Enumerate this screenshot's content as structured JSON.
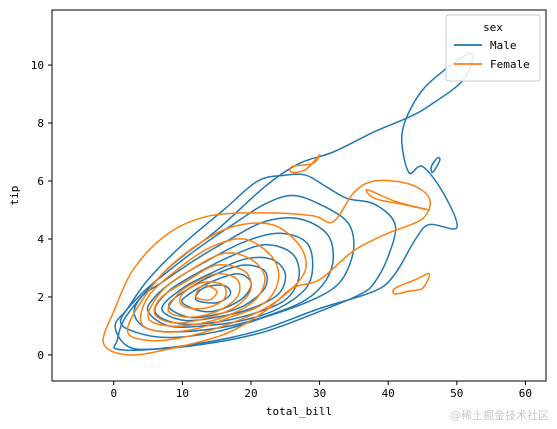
{
  "chart_data": {
    "type": "kde-contour",
    "xlabel": "total_bill",
    "ylabel": "tip",
    "xlim": [
      -9,
      63
    ],
    "ylim": [
      -0.9,
      11.9
    ],
    "xticks": [
      0,
      10,
      20,
      30,
      40,
      50,
      60
    ],
    "yticks": [
      0,
      2,
      4,
      6,
      8,
      10
    ],
    "legend": {
      "title": "sex",
      "placement": "top-right",
      "entries": [
        "Male",
        "Female"
      ]
    },
    "series": [
      {
        "name": "Male",
        "color": "#1f77b4",
        "contours": [
          {
            "level": 1,
            "points": [
              [
                0.5,
                0.2
              ],
              [
                6,
                0.2
              ],
              [
                15,
                0.5
              ],
              [
                22,
                0.9
              ],
              [
                30,
                1.6
              ],
              [
                38,
                2.2
              ],
              [
                41,
                2.8
              ],
              [
                44,
                4.0
              ],
              [
                46,
                4.5
              ],
              [
                50,
                4.4
              ],
              [
                48,
                5.6
              ],
              [
                45,
                6.5
              ],
              [
                43,
                6.3
              ],
              [
                42,
                7.6
              ],
              [
                44,
                8.8
              ],
              [
                47,
                9.6
              ],
              [
                52,
                10.4
              ],
              [
                51,
                9.5
              ],
              [
                46,
                8.6
              ],
              [
                43,
                8.2
              ],
              [
                38,
                7.7
              ],
              [
                32,
                7.0
              ],
              [
                27,
                6.6
              ],
              [
                22,
                5.8
              ],
              [
                15,
                4.3
              ],
              [
                8,
                3.0
              ],
              [
                2,
                1.4
              ],
              [
                0.5,
                0.5
              ]
            ]
          },
          {
            "level": 2,
            "points": [
              [
                0.2,
                1.0
              ],
              [
                2,
                0.3
              ],
              [
                6,
                0.2
              ],
              [
                14,
                0.4
              ],
              [
                22,
                0.8
              ],
              [
                30,
                1.5
              ],
              [
                36,
                2.1
              ],
              [
                38,
                2.5
              ],
              [
                40,
                3.4
              ],
              [
                41,
                4.5
              ],
              [
                38,
                5.2
              ],
              [
                34,
                5.4
              ],
              [
                31,
                5.8
              ],
              [
                28,
                6.2
              ],
              [
                25,
                6.2
              ],
              [
                21,
                6.0
              ],
              [
                16,
                5.0
              ],
              [
                10,
                3.8
              ],
              [
                5,
                2.6
              ],
              [
                2,
                1.6
              ]
            ]
          },
          {
            "level": 3,
            "points": [
              [
                1,
                1.2
              ],
              [
                3,
                0.8
              ],
              [
                8,
                0.6
              ],
              [
                15,
                0.8
              ],
              [
                22,
                1.3
              ],
              [
                28,
                1.8
              ],
              [
                32,
                2.3
              ],
              [
                34,
                2.9
              ],
              [
                35,
                3.8
              ],
              [
                34,
                4.6
              ],
              [
                30,
                5.2
              ],
              [
                26,
                5.5
              ],
              [
                22,
                5.2
              ],
              [
                18,
                4.6
              ],
              [
                13,
                3.8
              ],
              [
                8,
                2.9
              ],
              [
                4,
                2.1
              ]
            ]
          },
          {
            "level": 4,
            "points": [
              [
                3,
                1.4
              ],
              [
                5,
                0.9
              ],
              [
                10,
                0.8
              ],
              [
                17,
                1.0
              ],
              [
                23,
                1.4
              ],
              [
                28,
                1.9
              ],
              [
                31,
                2.6
              ],
              [
                32,
                3.4
              ],
              [
                31,
                4.2
              ],
              [
                27,
                4.7
              ],
              [
                22,
                4.6
              ],
              [
                17,
                4.0
              ],
              [
                12,
                3.3
              ],
              [
                7,
                2.5
              ],
              [
                4,
                2.0
              ]
            ]
          },
          {
            "level": 5,
            "points": [
              [
                5,
                1.5
              ],
              [
                8,
                1.0
              ],
              [
                13,
                1.0
              ],
              [
                19,
                1.2
              ],
              [
                24,
                1.6
              ],
              [
                28,
                2.3
              ],
              [
                29,
                3.1
              ],
              [
                28,
                3.9
              ],
              [
                24,
                4.2
              ],
              [
                19,
                3.9
              ],
              [
                14,
                3.3
              ],
              [
                9,
                2.6
              ],
              [
                6,
                2.0
              ]
            ]
          },
          {
            "level": 6,
            "points": [
              [
                6,
                1.5
              ],
              [
                9,
                1.1
              ],
              [
                14,
                1.1
              ],
              [
                20,
                1.4
              ],
              [
                25,
                1.9
              ],
              [
                27,
                2.7
              ],
              [
                26,
                3.5
              ],
              [
                22,
                3.8
              ],
              [
                17,
                3.4
              ],
              [
                12,
                2.8
              ],
              [
                8,
                2.2
              ]
            ]
          },
          {
            "level": 7,
            "points": [
              [
                7,
                1.6
              ],
              [
                10,
                1.2
              ],
              [
                15,
                1.3
              ],
              [
                20,
                1.6
              ],
              [
                24,
                2.1
              ],
              [
                25,
                2.8
              ],
              [
                23,
                3.3
              ],
              [
                19,
                3.3
              ],
              [
                14,
                2.8
              ],
              [
                10,
                2.3
              ]
            ]
          },
          {
            "level": 8,
            "points": [
              [
                8,
                1.7
              ],
              [
                11,
                1.3
              ],
              [
                15,
                1.4
              ],
              [
                19,
                1.7
              ],
              [
                22,
                2.3
              ],
              [
                22,
                2.9
              ],
              [
                19,
                3.1
              ],
              [
                15,
                2.8
              ],
              [
                11,
                2.3
              ]
            ]
          },
          {
            "level": 9,
            "points": [
              [
                10,
                1.8
              ],
              [
                13,
                1.5
              ],
              [
                16,
                1.6
              ],
              [
                19,
                2.0
              ],
              [
                20,
                2.5
              ],
              [
                18,
                2.8
              ],
              [
                14,
                2.5
              ],
              [
                11,
                2.1
              ]
            ]
          },
          {
            "level": 10,
            "points": [
              [
                12,
                1.9
              ],
              [
                15,
                1.8
              ],
              [
                17,
                2.1
              ],
              [
                16,
                2.4
              ],
              [
                13,
                2.3
              ]
            ]
          },
          {
            "level": 11,
            "points": [
              [
                46.5,
                6.3
              ],
              [
                47.5,
                6.7
              ],
              [
                47.2,
                6.8
              ],
              [
                46.3,
                6.5
              ]
            ]
          }
        ]
      },
      {
        "name": "Female",
        "color": "#ff7f0e",
        "contours": [
          {
            "level": 1,
            "points": [
              [
                -1.5,
                0.4
              ],
              [
                2,
                0.0
              ],
              [
                8,
                0.2
              ],
              [
                16,
                0.7
              ],
              [
                22,
                1.5
              ],
              [
                26,
                2.3
              ],
              [
                30,
                2.6
              ],
              [
                35,
                3.6
              ],
              [
                40,
                4.2
              ],
              [
                45,
                4.7
              ],
              [
                46,
                5.4
              ],
              [
                43,
                5.9
              ],
              [
                38,
                6.0
              ],
              [
                35,
                5.6
              ],
              [
                32,
                4.6
              ],
              [
                29,
                4.8
              ],
              [
                22,
                4.9
              ],
              [
                14,
                4.8
              ],
              [
                8,
                4.2
              ],
              [
                3,
                3.0
              ],
              [
                0,
                1.5
              ]
            ]
          },
          {
            "level": 2,
            "points": [
              [
                2,
                0.9
              ],
              [
                5,
                0.5
              ],
              [
                10,
                0.6
              ],
              [
                16,
                1.0
              ],
              [
                22,
                1.6
              ],
              [
                26,
                2.3
              ],
              [
                28,
                3.0
              ],
              [
                27,
                3.8
              ],
              [
                23,
                4.5
              ],
              [
                17,
                4.4
              ],
              [
                11,
                3.6
              ],
              [
                6,
                2.5
              ]
            ]
          },
          {
            "level": 3,
            "points": [
              [
                4,
                1.1
              ],
              [
                7,
                0.8
              ],
              [
                12,
                0.9
              ],
              [
                17,
                1.3
              ],
              [
                22,
                1.8
              ],
              [
                24,
                2.6
              ],
              [
                23,
                3.4
              ],
              [
                19,
                4.0
              ],
              [
                14,
                3.7
              ],
              [
                9,
                2.9
              ],
              [
                5,
                2.0
              ]
            ]
          },
          {
            "level": 4,
            "points": [
              [
                5,
                1.3
              ],
              [
                8,
                1.0
              ],
              [
                13,
                1.1
              ],
              [
                18,
                1.5
              ],
              [
                21,
                2.0
              ],
              [
                22,
                2.7
              ],
              [
                20,
                3.3
              ],
              [
                16,
                3.5
              ],
              [
                11,
                2.9
              ],
              [
                7,
                2.2
              ]
            ]
          },
          {
            "level": 5,
            "points": [
              [
                6,
                1.4
              ],
              [
                9,
                1.1
              ],
              [
                14,
                1.3
              ],
              [
                18,
                1.7
              ],
              [
                20,
                2.3
              ],
              [
                19,
                2.9
              ],
              [
                15,
                3.1
              ],
              [
                11,
                2.6
              ],
              [
                7,
                2.0
              ]
            ]
          },
          {
            "level": 6,
            "points": [
              [
                8,
                1.5
              ],
              [
                11,
                1.3
              ],
              [
                15,
                1.5
              ],
              [
                18,
                2.0
              ],
              [
                18,
                2.6
              ],
              [
                15,
                2.8
              ],
              [
                11,
                2.4
              ],
              [
                9,
                2.0
              ]
            ]
          },
          {
            "level": 7,
            "points": [
              [
                10,
                1.7
              ],
              [
                13,
                1.6
              ],
              [
                16,
                1.9
              ],
              [
                16,
                2.4
              ],
              [
                13,
                2.5
              ],
              [
                10,
                2.1
              ]
            ]
          },
          {
            "level": 8,
            "points": [
              [
                12,
                2.0
              ],
              [
                14,
                1.9
              ],
              [
                15,
                2.2
              ],
              [
                13,
                2.4
              ]
            ]
          },
          {
            "level": 9,
            "points": [
              [
                26,
                6.5
              ],
              [
                29,
                6.6
              ],
              [
                30,
                6.9
              ],
              [
                28,
                6.4
              ],
              [
                26,
                6.3
              ]
            ]
          },
          {
            "level": 10,
            "points": [
              [
                38,
                5.4
              ],
              [
                42,
                5.2
              ],
              [
                46,
                5.0
              ],
              [
                41,
                5.3
              ],
              [
                37,
                5.7
              ]
            ]
          },
          {
            "level": 11,
            "points": [
              [
                41,
                2.3
              ],
              [
                44,
                2.6
              ],
              [
                46,
                2.8
              ],
              [
                45,
                2.3
              ],
              [
                43,
                2.2
              ],
              [
                41,
                2.1
              ]
            ]
          }
        ]
      }
    ]
  },
  "watermark": "@稀土掘金技术社区"
}
